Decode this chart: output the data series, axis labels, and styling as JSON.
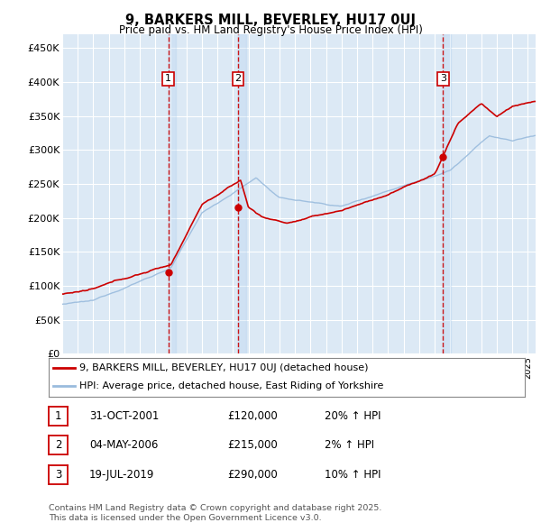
{
  "title": "9, BARKERS MILL, BEVERLEY, HU17 0UJ",
  "subtitle": "Price paid vs. HM Land Registry's House Price Index (HPI)",
  "legend_line1": "9, BARKERS MILL, BEVERLEY, HU17 0UJ (detached house)",
  "legend_line2": "HPI: Average price, detached house, East Riding of Yorkshire",
  "transactions": [
    {
      "num": 1,
      "date": "31-OCT-2001",
      "price": 120000,
      "hpi_change": "20% ↑ HPI",
      "year": 2001.83
    },
    {
      "num": 2,
      "date": "04-MAY-2006",
      "price": 215000,
      "hpi_change": "2% ↑ HPI",
      "year": 2006.33
    },
    {
      "num": 3,
      "date": "19-JUL-2019",
      "price": 290000,
      "hpi_change": "10% ↑ HPI",
      "year": 2019.54
    }
  ],
  "footnote1": "Contains HM Land Registry data © Crown copyright and database right 2025.",
  "footnote2": "This data is licensed under the Open Government Licence v3.0.",
  "ylim": [
    0,
    470000
  ],
  "yticks": [
    0,
    50000,
    100000,
    150000,
    200000,
    250000,
    300000,
    350000,
    400000,
    450000
  ],
  "xlim_start": 1995,
  "xlim_end": 2025.5,
  "background_color": "#dce9f5",
  "grid_color": "#ffffff",
  "red_line_color": "#cc0000",
  "blue_line_color": "#99bbdd",
  "vline_color": "#cc0000",
  "marker_box_color": "#cc0000",
  "figsize": [
    6.0,
    5.9
  ],
  "dpi": 100
}
